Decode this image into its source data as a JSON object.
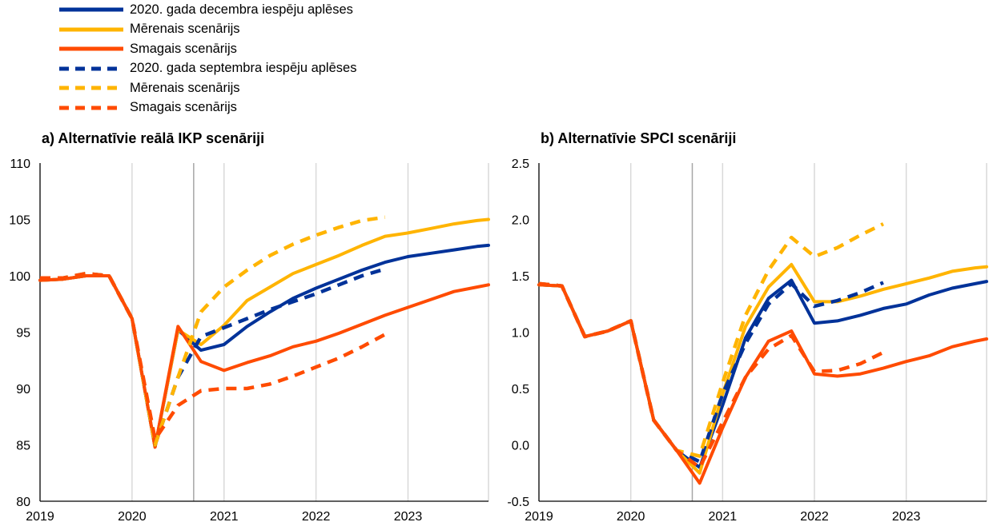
{
  "legend": [
    {
      "label": "2020. gada decembra iespēju aplēses",
      "color": "#003299",
      "dashed": false
    },
    {
      "label": "Mērenais scenārijs",
      "color": "#FFB400",
      "dashed": false
    },
    {
      "label": "Smagais scenārijs",
      "color": "#FF4B00",
      "dashed": false
    },
    {
      "label": "2020. gada septembra iespēju aplēses",
      "color": "#003299",
      "dashed": true
    },
    {
      "label": "Mērenais scenārijs",
      "color": "#FFB400",
      "dashed": true
    },
    {
      "label": "Smagais scenārijs",
      "color": "#FF4B00",
      "dashed": true
    }
  ],
  "chart_data": [
    {
      "type": "line",
      "title": "a) Alternatīvie reālā IKP scenāriji",
      "xlabel": "",
      "ylabel": "",
      "x_range": [
        2019,
        2023.875
      ],
      "x_ticks": [
        "2019",
        "2020",
        "2021",
        "2022",
        "2023"
      ],
      "ylim": [
        80,
        110
      ],
      "y_ticks": [
        "80",
        "85",
        "90",
        "95",
        "100",
        "105",
        "110"
      ],
      "vertical_marker_x": 2020.67,
      "grid": "vertical",
      "series": [
        {
          "name": "2020. gada decembra iespēju aplēses",
          "color": "#003299",
          "dashed": false,
          "width": 4,
          "x": [
            2019,
            2019.25,
            2019.5,
            2019.75,
            2020,
            2020.25,
            2020.5,
            2020.75,
            2021,
            2021.25,
            2021.5,
            2021.75,
            2022,
            2022.25,
            2022.5,
            2022.75,
            2023,
            2023.25,
            2023.5,
            2023.75,
            2023.875
          ],
          "y": [
            99.6,
            99.7,
            100,
            100,
            96.2,
            84.8,
            95.2,
            93.4,
            93.9,
            95.5,
            96.8,
            98,
            98.9,
            99.7,
            100.5,
            101.2,
            101.7,
            102,
            102.3,
            102.6,
            102.7
          ]
        },
        {
          "name": "Mērenais scenārijs",
          "color": "#FFB400",
          "dashed": false,
          "width": 4,
          "x": [
            2019,
            2019.25,
            2019.5,
            2019.75,
            2020,
            2020.25,
            2020.5,
            2020.75,
            2021,
            2021.25,
            2021.5,
            2021.75,
            2022,
            2022.25,
            2022.5,
            2022.75,
            2023,
            2023.25,
            2023.5,
            2023.75,
            2023.875
          ],
          "y": [
            99.6,
            99.7,
            100,
            100,
            96.2,
            84.8,
            95.2,
            93.9,
            95.6,
            97.8,
            99,
            100.2,
            101,
            101.8,
            102.7,
            103.5,
            103.8,
            104.2,
            104.6,
            104.9,
            105
          ]
        },
        {
          "name": "Smagais scenārijs",
          "color": "#FF4B00",
          "dashed": false,
          "width": 4,
          "x": [
            2019,
            2019.25,
            2019.5,
            2019.75,
            2020,
            2020.25,
            2020.5,
            2020.75,
            2021,
            2021.25,
            2021.5,
            2021.75,
            2022,
            2022.25,
            2022.5,
            2022.75,
            2023,
            2023.25,
            2023.5,
            2023.75,
            2023.875
          ],
          "y": [
            99.6,
            99.7,
            100,
            100,
            96.2,
            84.8,
            95.5,
            92.4,
            91.6,
            92.3,
            92.9,
            93.7,
            94.2,
            94.9,
            95.7,
            96.5,
            97.2,
            97.9,
            98.6,
            99,
            99.2
          ]
        },
        {
          "name": "2020. gada septembra iespēju aplēses",
          "color": "#003299",
          "dashed": true,
          "width": 4.5,
          "x": [
            2019,
            2019.25,
            2019.5,
            2019.75,
            2020,
            2020.25,
            2020.5,
            2020.75,
            2021,
            2021.25,
            2021.5,
            2021.75,
            2022,
            2022.25,
            2022.5,
            2022.75
          ],
          "y": [
            99.8,
            99.8,
            100.2,
            100,
            96.2,
            85,
            91,
            94.6,
            95.4,
            96.2,
            97,
            97.7,
            98.4,
            99.2,
            100,
            100.6
          ]
        },
        {
          "name": "Mērenais scenārijs",
          "color": "#FFB400",
          "dashed": true,
          "width": 4.5,
          "x": [
            2019,
            2019.25,
            2019.5,
            2019.75,
            2020,
            2020.25,
            2020.5,
            2020.75,
            2021,
            2021.25,
            2021.5,
            2021.75,
            2022,
            2022.25,
            2022.5,
            2022.75
          ],
          "y": [
            99.8,
            99.8,
            100.2,
            100,
            96.2,
            85,
            91,
            96.8,
            99,
            100.5,
            101.8,
            102.8,
            103.6,
            104.3,
            104.9,
            105.2
          ]
        },
        {
          "name": "Smagais scenārijs",
          "color": "#FF4B00",
          "dashed": true,
          "width": 4.5,
          "x": [
            2019,
            2019.25,
            2019.5,
            2019.75,
            2020,
            2020.25,
            2020.5,
            2020.75,
            2021,
            2021.25,
            2021.5,
            2021.75,
            2022,
            2022.25,
            2022.5,
            2022.75
          ],
          "y": [
            99.8,
            99.8,
            100.2,
            100,
            96.2,
            85.5,
            88.5,
            89.8,
            90,
            90,
            90.4,
            91.1,
            91.9,
            92.7,
            93.7,
            94.8
          ]
        }
      ]
    },
    {
      "type": "line",
      "title": "b) Alternatīvie SPCI scenāriji",
      "xlabel": "",
      "ylabel": "",
      "x_range": [
        2019,
        2023.875
      ],
      "x_ticks": [
        "2019",
        "2020",
        "2021",
        "2022",
        "2023"
      ],
      "ylim": [
        -0.5,
        2.5
      ],
      "y_ticks": [
        "-0.5",
        "0.0",
        "0.5",
        "1.0",
        "1.5",
        "2.0",
        "2.5"
      ],
      "vertical_marker_x": 2020.67,
      "grid": "vertical",
      "series": [
        {
          "name": "2020. gada decembra iespēju aplēses",
          "color": "#003299",
          "dashed": false,
          "width": 4,
          "x": [
            2019,
            2019.25,
            2019.5,
            2019.75,
            2020,
            2020.25,
            2020.5,
            2020.75,
            2021,
            2021.25,
            2021.5,
            2021.75,
            2022,
            2022.25,
            2022.5,
            2022.75,
            2023,
            2023.25,
            2023.5,
            2023.75,
            2023.875
          ],
          "y": [
            1.42,
            1.41,
            0.96,
            1.01,
            1.1,
            0.22,
            -0.05,
            -0.2,
            0.35,
            0.95,
            1.3,
            1.46,
            1.08,
            1.1,
            1.15,
            1.21,
            1.25,
            1.33,
            1.39,
            1.43,
            1.45
          ]
        },
        {
          "name": "Mērenais scenārijs",
          "color": "#FFB400",
          "dashed": false,
          "width": 4,
          "x": [
            2019,
            2019.25,
            2019.5,
            2019.75,
            2020,
            2020.25,
            2020.5,
            2020.75,
            2021,
            2021.25,
            2021.5,
            2021.75,
            2022,
            2022.25,
            2022.5,
            2022.75,
            2023,
            2023.25,
            2023.5,
            2023.75,
            2023.875
          ],
          "y": [
            1.42,
            1.41,
            0.96,
            1.01,
            1.1,
            0.22,
            -0.05,
            -0.25,
            0.45,
            1.05,
            1.4,
            1.6,
            1.27,
            1.27,
            1.32,
            1.38,
            1.43,
            1.48,
            1.54,
            1.57,
            1.58
          ]
        },
        {
          "name": "Smagais scenārijs",
          "color": "#FF4B00",
          "dashed": false,
          "width": 4,
          "x": [
            2019,
            2019.25,
            2019.5,
            2019.75,
            2020,
            2020.25,
            2020.5,
            2020.75,
            2021,
            2021.25,
            2021.5,
            2021.75,
            2022,
            2022.25,
            2022.5,
            2022.75,
            2023,
            2023.25,
            2023.5,
            2023.75,
            2023.875
          ],
          "y": [
            1.42,
            1.41,
            0.96,
            1.01,
            1.1,
            0.22,
            -0.05,
            -0.34,
            0.15,
            0.6,
            0.92,
            1.01,
            0.63,
            0.61,
            0.63,
            0.68,
            0.74,
            0.79,
            0.87,
            0.92,
            0.94
          ]
        },
        {
          "name": "2020. gada septembra iespēju aplēses",
          "color": "#003299",
          "dashed": true,
          "width": 4.5,
          "x": [
            2019,
            2019.25,
            2019.5,
            2019.75,
            2020,
            2020.25,
            2020.5,
            2020.75,
            2021,
            2021.25,
            2021.5,
            2021.75,
            2022,
            2022.25,
            2022.5,
            2022.75
          ],
          "y": [
            1.43,
            1.41,
            0.96,
            1.01,
            1.1,
            0.22,
            -0.05,
            -0.15,
            0.45,
            0.9,
            1.25,
            1.43,
            1.23,
            1.28,
            1.35,
            1.44
          ]
        },
        {
          "name": "Mērenais scenārijs",
          "color": "#FFB400",
          "dashed": true,
          "width": 4.5,
          "x": [
            2019,
            2019.25,
            2019.5,
            2019.75,
            2020,
            2020.25,
            2020.5,
            2020.75,
            2021,
            2021.25,
            2021.5,
            2021.75,
            2022,
            2022.25,
            2022.5,
            2022.75
          ],
          "y": [
            1.43,
            1.41,
            0.96,
            1.01,
            1.1,
            0.22,
            -0.05,
            -0.1,
            0.55,
            1.15,
            1.55,
            1.84,
            1.67,
            1.75,
            1.86,
            1.96
          ]
        },
        {
          "name": "Smagais scenārijs",
          "color": "#FF4B00",
          "dashed": true,
          "width": 4.5,
          "x": [
            2019,
            2019.25,
            2019.5,
            2019.75,
            2020,
            2020.25,
            2020.5,
            2020.75,
            2021,
            2021.25,
            2021.5,
            2021.75,
            2022,
            2022.25,
            2022.5,
            2022.75
          ],
          "y": [
            1.43,
            1.41,
            0.96,
            1.01,
            1.1,
            0.22,
            -0.05,
            -0.2,
            0.2,
            0.6,
            0.85,
            0.97,
            0.65,
            0.66,
            0.72,
            0.82
          ]
        }
      ]
    }
  ]
}
